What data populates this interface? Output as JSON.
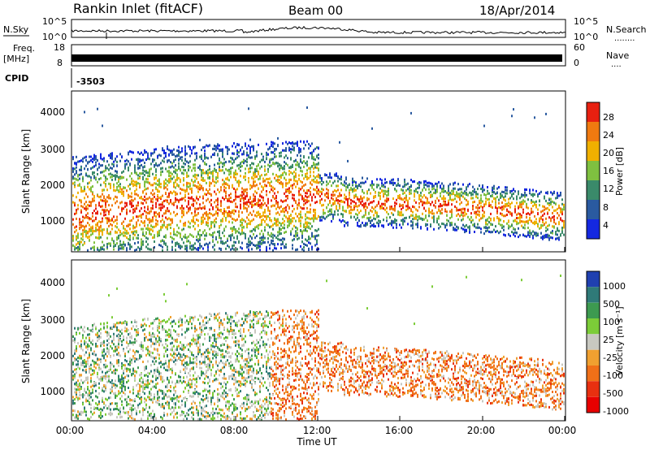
{
  "header": {
    "title": "Rankin Inlet (fitACF)",
    "beam": "Beam 00",
    "date": "18/Apr/2014"
  },
  "chart_data": [
    {
      "type": "line",
      "panel": "noise",
      "left_label": "N.Sky",
      "right_label": "N.Search",
      "right_legend": "........",
      "y_ticks_left": [
        "10^5",
        "10^0"
      ],
      "y_ticks_right": [
        "10^5",
        "10^0"
      ]
    },
    {
      "type": "line",
      "panel": "freq-nave",
      "left_label_1": "Freq.",
      "left_label_2": "[MHz]",
      "right_label": "Nave",
      "right_legend": "....",
      "y_ticks_left": [
        "18",
        "8"
      ],
      "y_ticks_right": [
        "60",
        "0"
      ]
    },
    {
      "type": "table",
      "panel": "cpid",
      "label": "CPID",
      "value": "-3503"
    },
    {
      "type": "heatmap",
      "panel": "power",
      "ylabel": "Slant Range [km]",
      "ylim": [
        200,
        4500
      ],
      "y_ticks": [
        "1000",
        "2000",
        "3000",
        "4000"
      ],
      "colorbar_label": "Power [dB]",
      "colorbar_ticks": [
        "4",
        "8",
        "12",
        "16",
        "20",
        "24",
        "28"
      ],
      "colors": [
        "#1428e0",
        "#2a5aa0",
        "#3a8a6a",
        "#7fc040",
        "#f0b000",
        "#f07a10",
        "#e82010"
      ]
    },
    {
      "type": "heatmap",
      "panel": "velocity",
      "ylabel": "Slant Range [km]",
      "ylim": [
        200,
        4500
      ],
      "y_ticks": [
        "1000",
        "2000",
        "3000",
        "4000"
      ],
      "colorbar_label": "Velocity [m s⁻¹]",
      "colorbar_ticks": [
        "1000",
        "500",
        "100",
        "25",
        "-25",
        "-100",
        "-500",
        "-1000"
      ],
      "colors": [
        "#2040b0",
        "#2f7a78",
        "#3d9a50",
        "#7ccc38",
        "#c8c8c0",
        "#f0a030",
        "#f07018",
        "#e83010",
        "#e80000"
      ]
    }
  ],
  "x_axis": {
    "label": "Time UT",
    "ticks": [
      "00:00",
      "04:00",
      "08:00",
      "12:00",
      "16:00",
      "20:00",
      "00:00"
    ]
  }
}
